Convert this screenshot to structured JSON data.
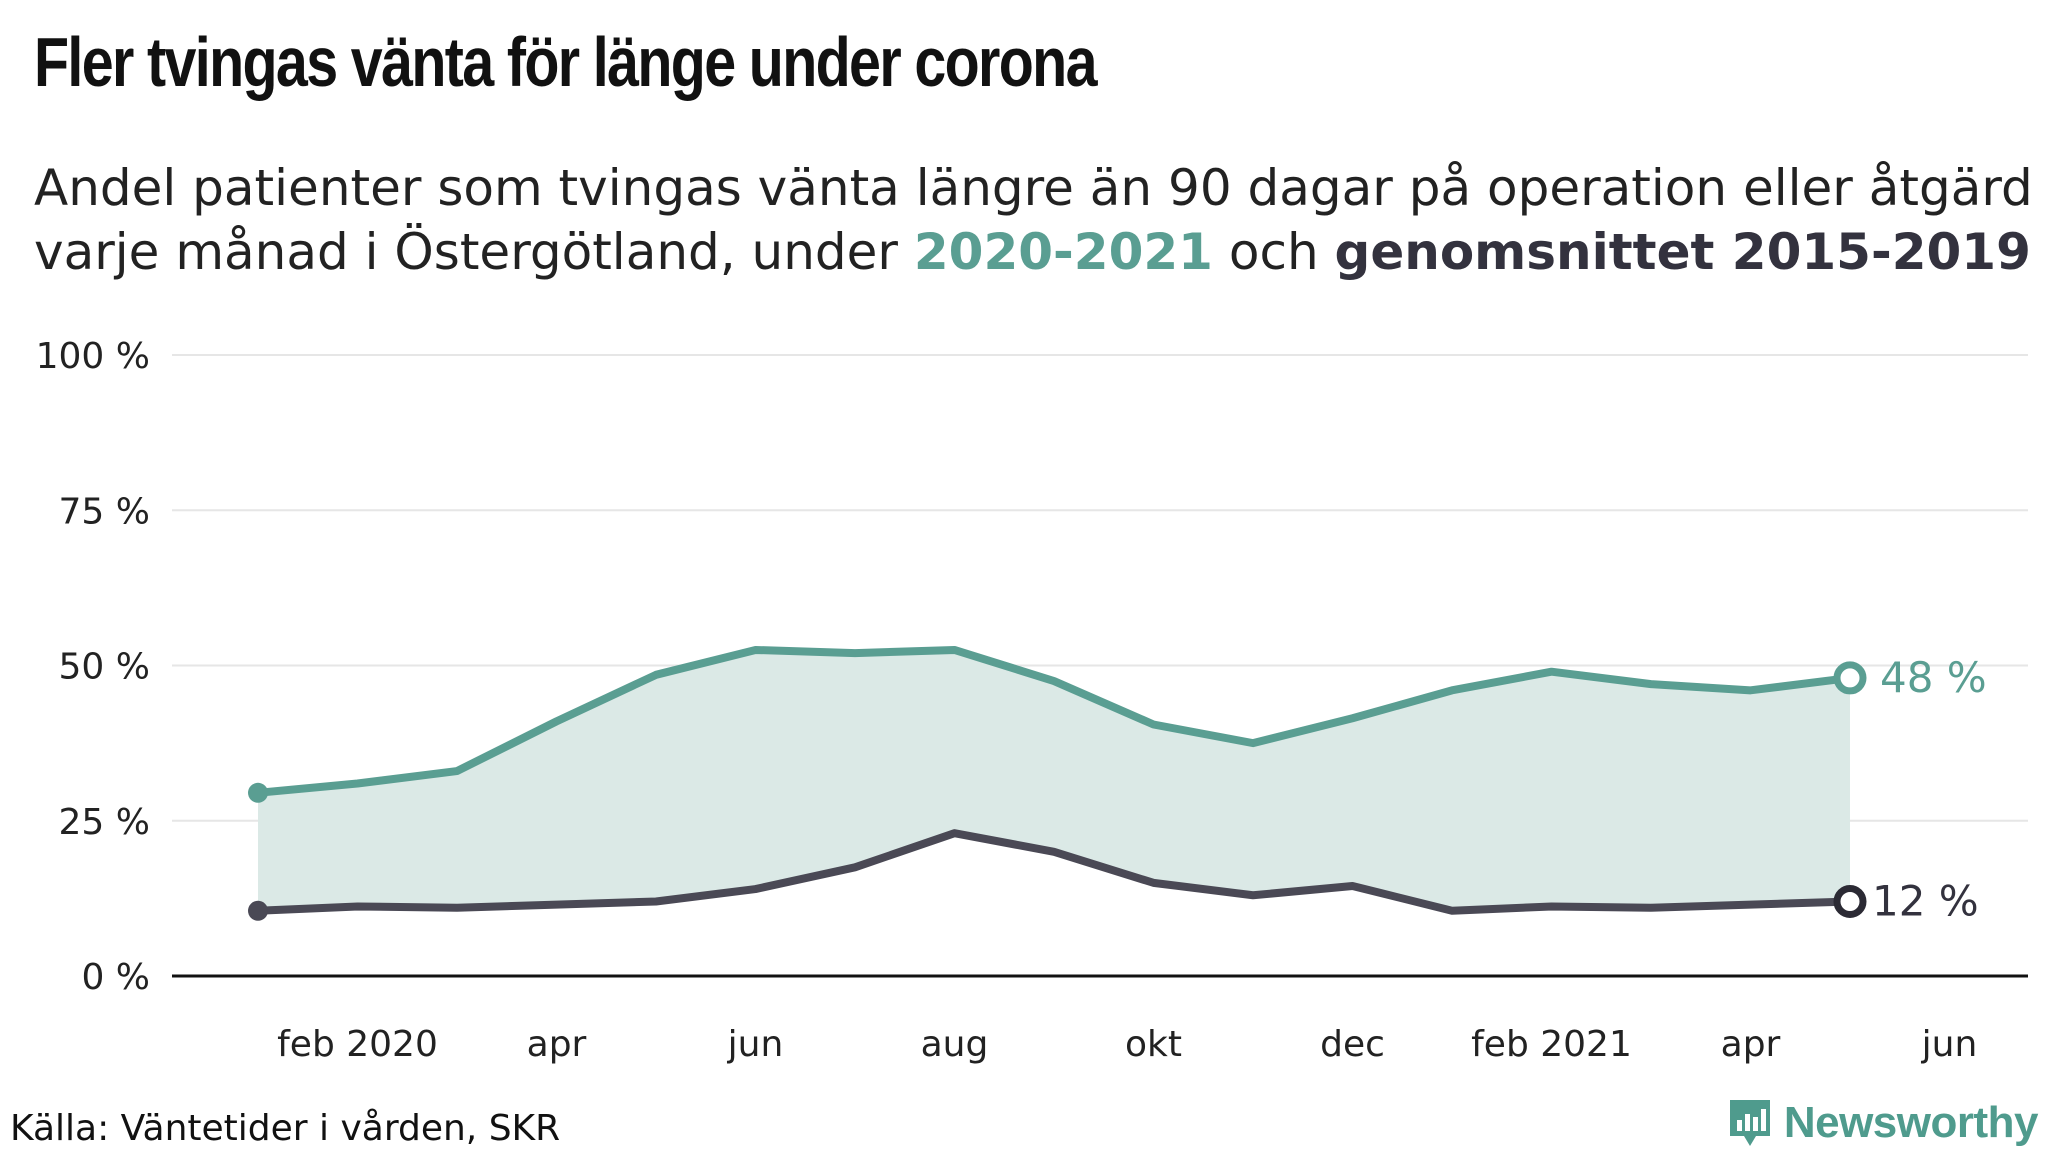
{
  "title": "Fler tvingas vänta för länge under corona",
  "subtitle": {
    "text_before": "Andel patienter som tvingas vänta längre än 90 dagar på operation eller åtgärd varje månad i Östergötland, under ",
    "highlight_covid": "2020-2021",
    "text_middle": " och ",
    "highlight_avg": "genomsnittet 2015-2019"
  },
  "source": "Källa: Väntetider i vården, SKR",
  "brand": "Newsworthy",
  "colors": {
    "covid": "#5a9e92",
    "average": "#4a4955",
    "fill": "#dbe9e6",
    "grid": "#e6e6e6",
    "axis": "#111111"
  },
  "chart_data": {
    "type": "line",
    "x": [
      "2020-01",
      "2020-02",
      "2020-03",
      "2020-04",
      "2020-05",
      "2020-06",
      "2020-07",
      "2020-08",
      "2020-09",
      "2020-10",
      "2020-11",
      "2020-12",
      "2021-01",
      "2021-02",
      "2021-03",
      "2021-04",
      "2021-05"
    ],
    "series": [
      {
        "name": "2020-2021",
        "values": [
          29.5,
          31,
          33,
          41,
          48.5,
          52.5,
          52,
          52.5,
          47.5,
          40.5,
          37.5,
          41.5,
          46,
          49,
          47,
          46,
          48
        ],
        "end_label": "48 %"
      },
      {
        "name": "genomsnittet 2015-2019",
        "values": [
          10.5,
          11.2,
          11,
          11.5,
          12,
          14,
          17.5,
          23,
          20,
          15,
          13,
          14.5,
          10.5,
          11.2,
          11,
          11.5,
          12
        ],
        "end_label": "12 %"
      }
    ],
    "ylim": [
      0,
      100
    ],
    "yticks": [
      0,
      25,
      50,
      75,
      100
    ],
    "ytick_labels": [
      "0 %",
      "25 %",
      "50 %",
      "75 %",
      "100 %"
    ],
    "xtick_labels": [
      {
        "date": "2020-02",
        "label": "feb 2020"
      },
      {
        "date": "2020-04",
        "label": "apr"
      },
      {
        "date": "2020-06",
        "label": "jun"
      },
      {
        "date": "2020-08",
        "label": "aug"
      },
      {
        "date": "2020-10",
        "label": "okt"
      },
      {
        "date": "2020-12",
        "label": "dec"
      },
      {
        "date": "2021-02",
        "label": "feb 2021"
      },
      {
        "date": "2021-04",
        "label": "apr"
      },
      {
        "date": "2021-06",
        "label": "jun"
      }
    ],
    "grid": true,
    "area_between_series": true
  }
}
